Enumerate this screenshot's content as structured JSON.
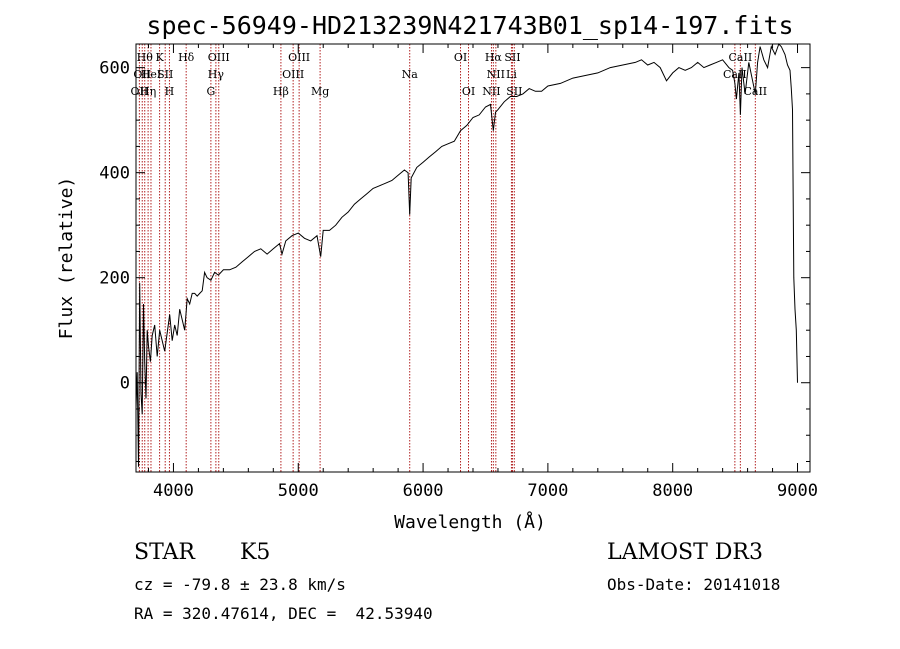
{
  "chart_data": {
    "type": "line",
    "title": "spec-56949-HD213239N421743B01_sp14-197.fits",
    "xlabel": "Wavelength (Å)",
    "ylabel": "Flux (relative)",
    "xlim": [
      3700,
      9100
    ],
    "ylim": [
      -170,
      645
    ],
    "x_ticks": [
      4000,
      5000,
      6000,
      7000,
      8000,
      9000
    ],
    "y_ticks": [
      0,
      200,
      400,
      600
    ],
    "series": [
      {
        "name": "flux",
        "x": [
          3700,
          3710,
          3720,
          3730,
          3740,
          3750,
          3760,
          3770,
          3780,
          3790,
          3800,
          3815,
          3830,
          3850,
          3870,
          3890,
          3910,
          3930,
          3950,
          3970,
          3990,
          4010,
          4030,
          4050,
          4070,
          4090,
          4110,
          4130,
          4150,
          4170,
          4190,
          4210,
          4230,
          4250,
          4270,
          4300,
          4330,
          4360,
          4400,
          4450,
          4500,
          4550,
          4600,
          4650,
          4700,
          4750,
          4800,
          4850,
          4870,
          4900,
          4950,
          5000,
          5050,
          5100,
          5150,
          5180,
          5200,
          5250,
          5300,
          5350,
          5400,
          5450,
          5500,
          5550,
          5600,
          5650,
          5700,
          5750,
          5800,
          5850,
          5880,
          5893,
          5905,
          5950,
          6000,
          6050,
          6100,
          6150,
          6200,
          6250,
          6300,
          6350,
          6400,
          6450,
          6500,
          6540,
          6563,
          6580,
          6600,
          6650,
          6700,
          6750,
          6800,
          6850,
          6900,
          6950,
          7000,
          7100,
          7200,
          7300,
          7400,
          7500,
          7600,
          7700,
          7750,
          7800,
          7850,
          7900,
          7950,
          8000,
          8050,
          8100,
          8150,
          8200,
          8250,
          8300,
          8350,
          8400,
          8450,
          8480,
          8498,
          8510,
          8530,
          8542,
          8555,
          8580,
          8610,
          8640,
          8662,
          8680,
          8700,
          8730,
          8760,
          8790,
          8820,
          8850,
          8870,
          8900,
          8920,
          8940,
          8950,
          8960,
          8970,
          8980,
          8990,
          9000
        ],
        "y": [
          -50,
          20,
          -160,
          190,
          -20,
          -60,
          150,
          40,
          -30,
          100,
          70,
          40,
          90,
          110,
          50,
          100,
          80,
          60,
          95,
          130,
          80,
          110,
          90,
          140,
          120,
          100,
          160,
          150,
          170,
          170,
          165,
          170,
          175,
          210,
          200,
          195,
          210,
          205,
          215,
          215,
          220,
          230,
          240,
          250,
          255,
          245,
          255,
          265,
          245,
          270,
          280,
          285,
          275,
          270,
          280,
          240,
          290,
          290,
          300,
          315,
          325,
          340,
          350,
          360,
          370,
          375,
          380,
          385,
          395,
          405,
          400,
          320,
          390,
          410,
          420,
          430,
          440,
          450,
          455,
          460,
          480,
          490,
          505,
          510,
          525,
          530,
          480,
          515,
          520,
          535,
          545,
          545,
          550,
          560,
          555,
          555,
          565,
          570,
          580,
          585,
          590,
          600,
          605,
          610,
          615,
          605,
          610,
          600,
          575,
          590,
          600,
          595,
          600,
          610,
          600,
          605,
          610,
          615,
          600,
          595,
          570,
          540,
          590,
          510,
          600,
          550,
          610,
          575,
          550,
          610,
          640,
          615,
          600,
          640,
          625,
          650,
          640,
          625,
          605,
          595,
          560,
          520,
          200,
          140,
          100,
          0
        ]
      }
    ],
    "line_labels": [
      {
        "wavelength": 3727,
        "label": "OII",
        "row": 2
      },
      {
        "wavelength": 3750,
        "label": "OII",
        "row": 1
      },
      {
        "wavelength": 3770,
        "label": "Hθ",
        "row": 0
      },
      {
        "wavelength": 3797,
        "label": "Hη",
        "row": 2
      },
      {
        "wavelength": 3820,
        "label": "HeI",
        "row": 1
      },
      {
        "wavelength": 3889,
        "label": "K",
        "row": 0
      },
      {
        "wavelength": 3934,
        "label": "SII",
        "row": 1
      },
      {
        "wavelength": 3968,
        "label": "H",
        "row": 2
      },
      {
        "wavelength": 4102,
        "label": "Hδ",
        "row": 0
      },
      {
        "wavelength": 4300,
        "label": "G",
        "row": 2
      },
      {
        "wavelength": 4340,
        "label": "Hγ",
        "row": 1
      },
      {
        "wavelength": 4363,
        "label": "OIII",
        "row": 0
      },
      {
        "wavelength": 4861,
        "label": "Hβ",
        "row": 2
      },
      {
        "wavelength": 4959,
        "label": "OIII",
        "row": 1
      },
      {
        "wavelength": 5007,
        "label": "OIII",
        "row": 0
      },
      {
        "wavelength": 5175,
        "label": "Mg",
        "row": 2
      },
      {
        "wavelength": 5893,
        "label": "Na",
        "row": 1
      },
      {
        "wavelength": 6300,
        "label": "OI",
        "row": 0
      },
      {
        "wavelength": 6364,
        "label": "OI",
        "row": 2
      },
      {
        "wavelength": 6548,
        "label": "NII",
        "row": 2
      },
      {
        "wavelength": 6563,
        "label": "Hα",
        "row": 0
      },
      {
        "wavelength": 6583,
        "label": "NII",
        "row": 1
      },
      {
        "wavelength": 6708,
        "label": "Li",
        "row": 1
      },
      {
        "wavelength": 6716,
        "label": "SII",
        "row": 0
      },
      {
        "wavelength": 6731,
        "label": "SII",
        "row": 2
      },
      {
        "wavelength": 8498,
        "label": "CaII",
        "row": 1
      },
      {
        "wavelength": 8542,
        "label": "CaII",
        "row": 0
      },
      {
        "wavelength": 8662,
        "label": "CaII",
        "row": 2
      }
    ],
    "grid": false,
    "line_color": "#000000",
    "marker_color": "#b22222"
  },
  "footer": {
    "class_label": "STAR",
    "subclass": "K5",
    "redshift": "cz = -79.8 ± 23.8 km/s",
    "coords": "RA = 320.47614, DEC =  42.53940",
    "survey": "LAMOST DR3",
    "obs_date": "Obs-Date: 20141018"
  }
}
